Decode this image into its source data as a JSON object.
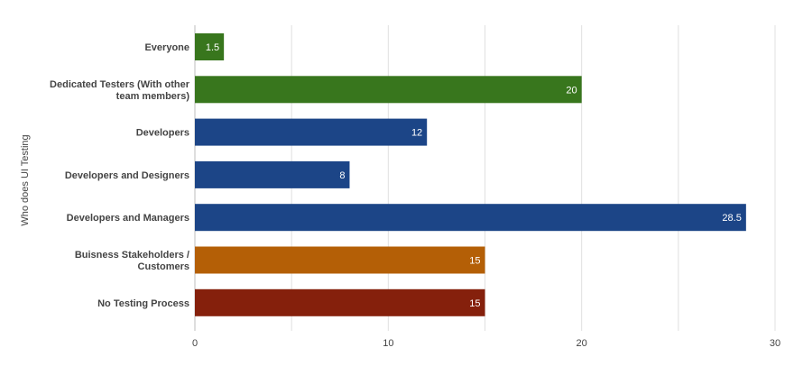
{
  "chart_data": {
    "type": "bar",
    "orientation": "horizontal",
    "ylabel": "Who does UI Testing",
    "xlabel": "",
    "xlim": [
      0,
      30
    ],
    "xticks": [
      0,
      10,
      20,
      30
    ],
    "grid": true,
    "categories": [
      {
        "label": [
          "Everyone"
        ],
        "value": 1.5,
        "color": "#38761d"
      },
      {
        "label": [
          "Dedicated Testers (With other",
          "team members)"
        ],
        "value": 20,
        "color": "#38761d"
      },
      {
        "label": [
          "Developers"
        ],
        "value": 12,
        "color": "#1c4587"
      },
      {
        "label": [
          "Developers and Designers"
        ],
        "value": 8,
        "color": "#1c4587"
      },
      {
        "label": [
          "Developers and Managers"
        ],
        "value": 28.5,
        "color": "#1c4587"
      },
      {
        "label": [
          "Buisness Stakeholders /",
          "Customers"
        ],
        "value": 15,
        "color": "#b45f06"
      },
      {
        "label": [
          "No Testing Process"
        ],
        "value": 15,
        "color": "#85200c"
      }
    ],
    "colors": {
      "grid": "#e0e0e0",
      "baseline": "#bdbdbd",
      "text": "#444444",
      "value_label": "#ffffff"
    }
  }
}
